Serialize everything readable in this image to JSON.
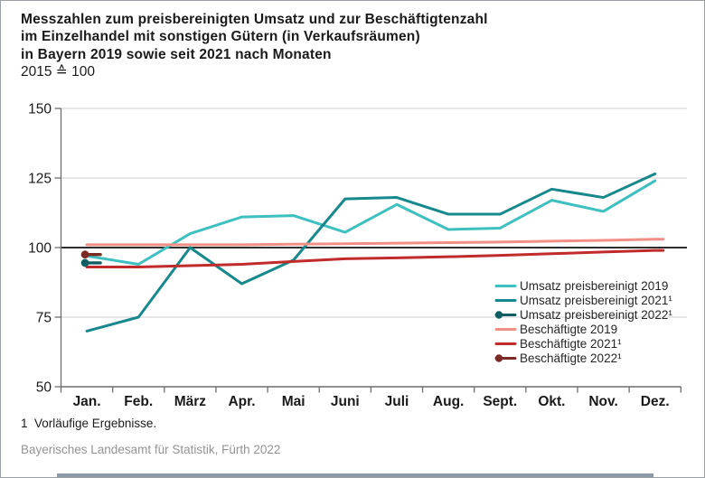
{
  "header": {
    "title_lines": [
      "Messzahlen zum preisbereinigten Umsatz und zur Beschäftigtenzahl",
      "im Einzelhandel mit sonstigen Gütern (in Verkaufsräumen)",
      "in Bayern 2019 sowie seit 2021 nach Monaten"
    ],
    "subtitle": "2015 ≙ 100"
  },
  "footnote": "1  Vorläufige Ergebnisse.",
  "source": "Bayerisches Landesamt für Statistik, Fürth 2022",
  "chart_data": {
    "type": "line",
    "categories": [
      "Jan.",
      "Feb.",
      "März",
      "Apr.",
      "Mai",
      "Juni",
      "Juli",
      "Aug.",
      "Sept.",
      "Okt.",
      "Nov.",
      "Dez."
    ],
    "ylim": [
      50,
      150
    ],
    "yticks": [
      150,
      125,
      100,
      75,
      50
    ],
    "baseline": 100,
    "grid": true,
    "legend_position": "right-middle",
    "colors": {
      "grid": "#cfcfcf",
      "baseline": "#111111",
      "axis": "#6e6e6e",
      "tick_label": "#1a1a1a",
      "legend_text": "#262626"
    },
    "series": [
      {
        "id": "umsatz-preisbereinigt-2019",
        "name": "Umsatz preisbereinigt 2019",
        "color": "#3EBFC0",
        "marker": false,
        "extend": false,
        "values": [
          97,
          94,
          105,
          111,
          111.5,
          105.5,
          115.5,
          106.5,
          107,
          117,
          113,
          124
        ]
      },
      {
        "id": "umsatz-preisbereinigt-2021",
        "name": "Umsatz preisbereinigt 2021¹",
        "color": "#17898C",
        "marker": false,
        "extend": false,
        "values": [
          70,
          75,
          100,
          87,
          95.5,
          117.5,
          118,
          112,
          112,
          121,
          118,
          126.5
        ]
      },
      {
        "id": "umsatz-preisbereinigt-2022",
        "name": "Umsatz preisbereinigt 2022¹",
        "color": "#0F5E63",
        "marker": true,
        "extend": false,
        "values": [
          94.5
        ]
      },
      {
        "id": "beschaeftigte-2019",
        "name": "Beschäftigte 2019",
        "color": "#F18E85",
        "marker": false,
        "extend": true,
        "values": [
          101,
          101,
          101,
          101,
          101.2,
          101.4,
          101.6,
          101.8,
          102,
          102.3,
          102.6,
          103
        ]
      },
      {
        "id": "beschaeftigte-2021",
        "name": "Beschäftigte 2021¹",
        "color": "#C12B2B",
        "marker": false,
        "extend": true,
        "values": [
          93,
          93,
          93.5,
          94,
          95,
          96,
          96.3,
          96.7,
          97.2,
          97.8,
          98.4,
          99
        ]
      },
      {
        "id": "beschaeftigte-2022",
        "name": "Beschäftigte 2022¹",
        "color": "#7C2B24",
        "marker": true,
        "extend": false,
        "values": [
          97.5
        ]
      }
    ]
  }
}
